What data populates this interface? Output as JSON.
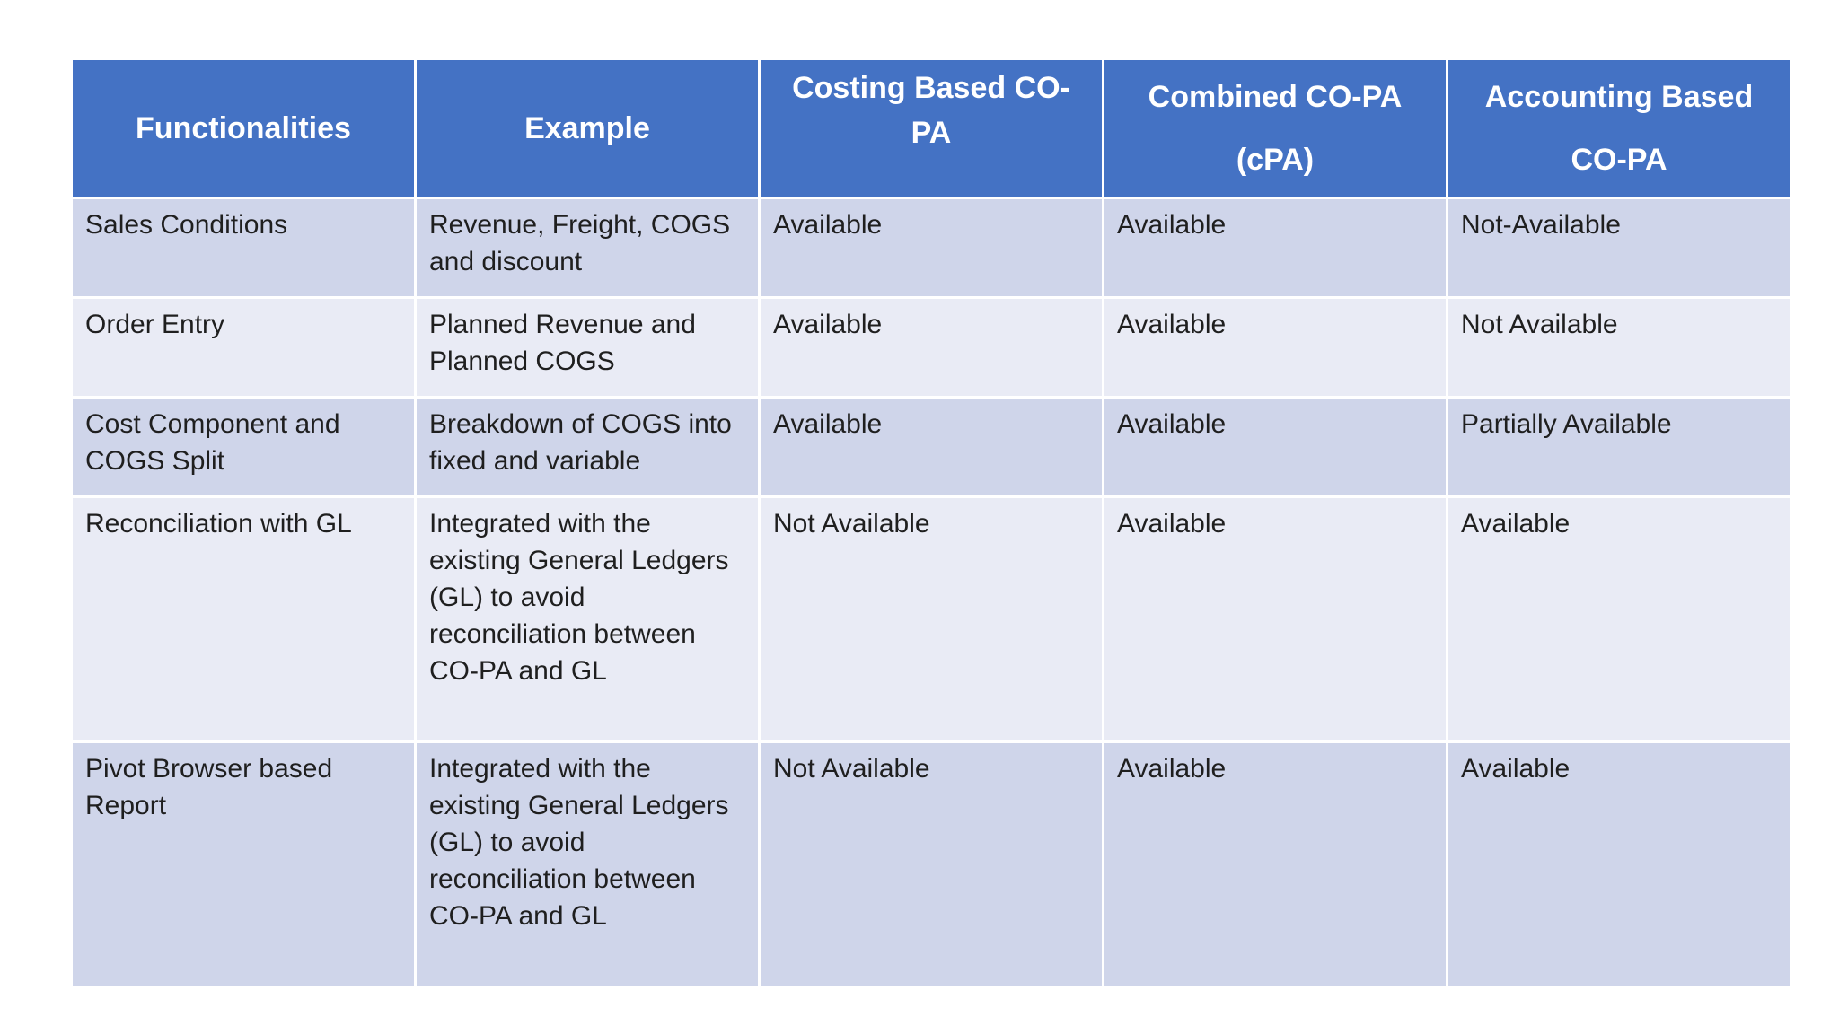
{
  "table": {
    "headers": [
      "Functionalities",
      "Example",
      "Costing  Based CO- PA",
      "Combined CO-PA (cPA)",
      "Accounting Based CO-PA"
    ],
    "rows": [
      [
        "Sales Conditions",
        "Revenue, Freight, COGS and  discount",
        "Available",
        "Available",
        "Not-Available"
      ],
      [
        "Order Entry",
        "Planned Revenue and Planned COGS",
        "Available",
        "Available",
        "Not Available"
      ],
      [
        "Cost Component and COGS Split",
        "Breakdown of COGS into fixed and variable",
        "Available",
        "Available",
        "Partially Available"
      ],
      [
        "Reconciliation with GL",
        "Integrated with the existing General Ledgers (GL) to avoid reconciliation between CO-PA and GL",
        "Not Available",
        "Available",
        "Available"
      ],
      [
        "Pivot Browser based Report",
        "Integrated with the existing General Ledgers (GL) to avoid reconciliation between CO-PA and GL",
        "Not Available",
        "Available",
        "Available"
      ]
    ]
  },
  "colors": {
    "header_bg": "#4472c4",
    "row_dark": "#cfd5ea",
    "row_light": "#e9ebf5"
  }
}
